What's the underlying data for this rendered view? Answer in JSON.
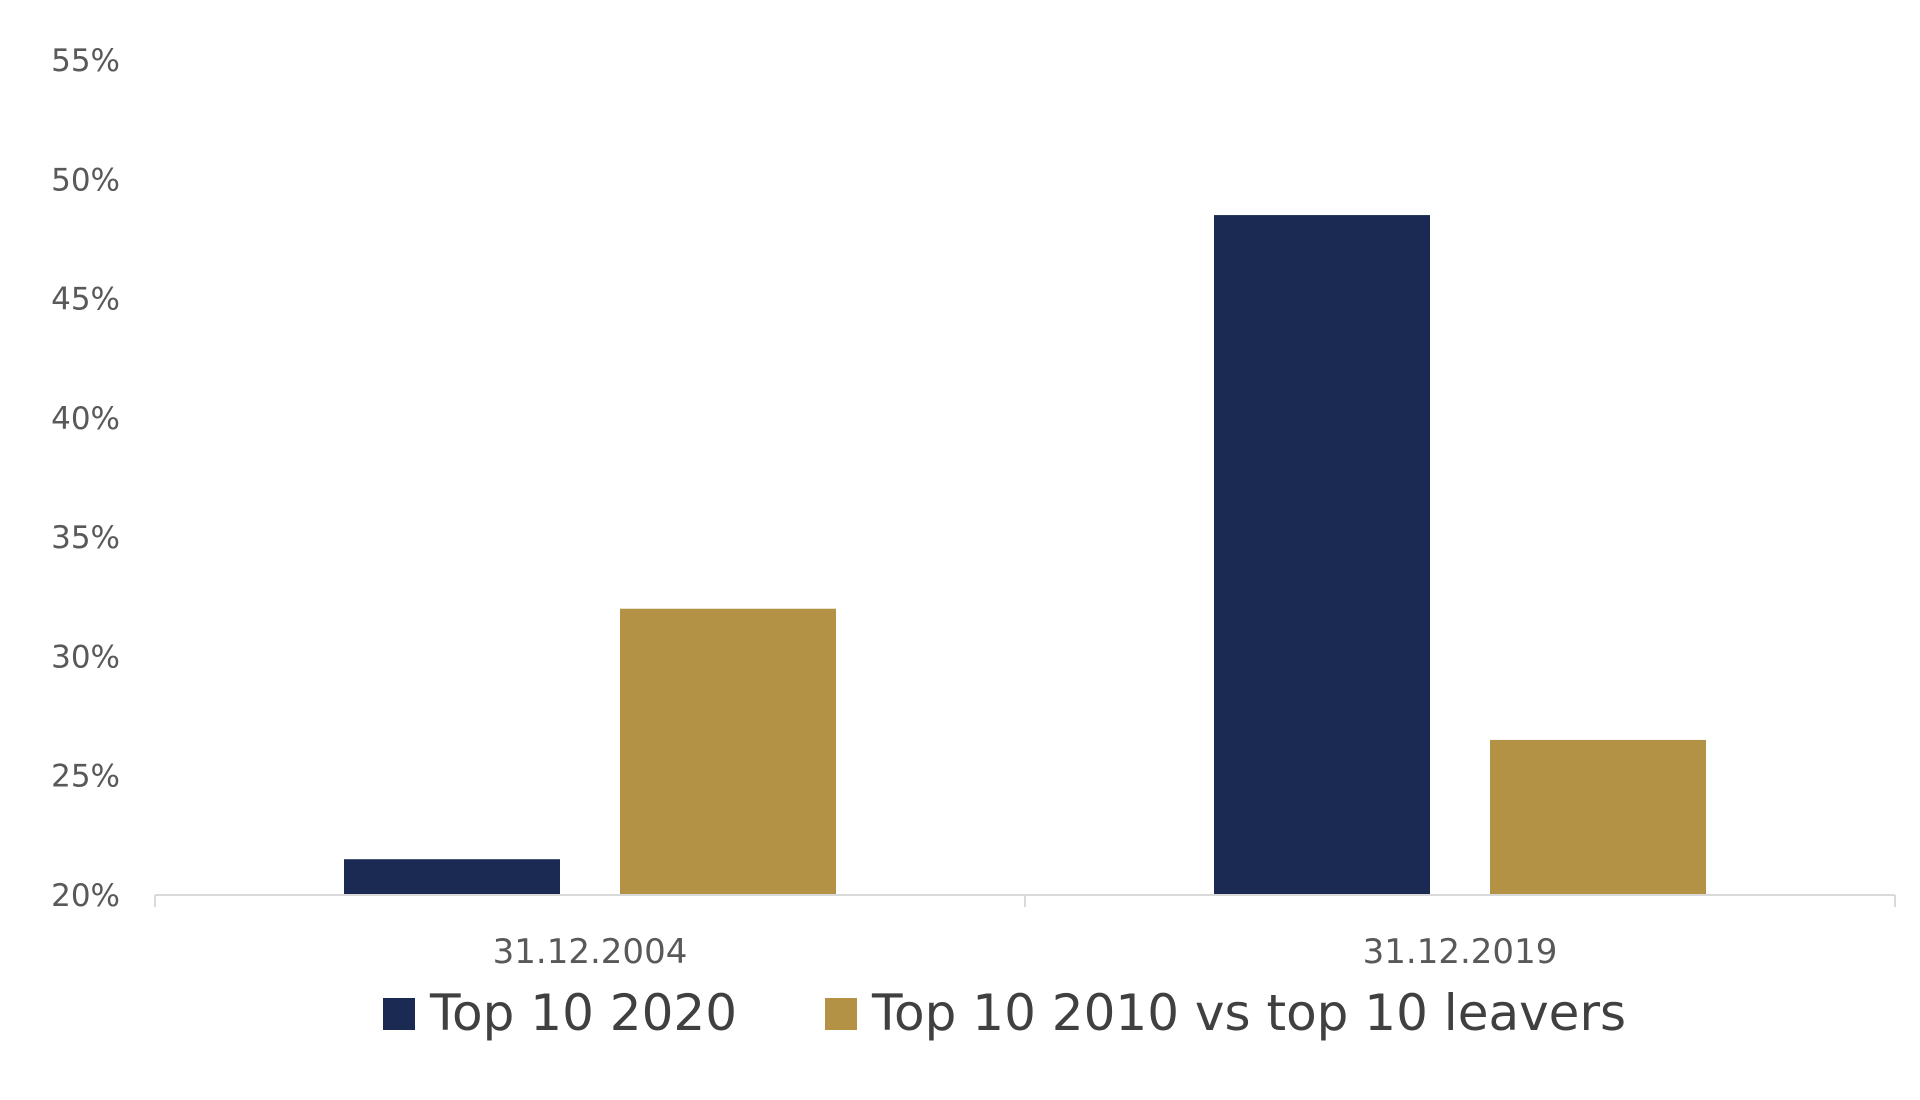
{
  "chart_data": {
    "type": "bar",
    "title": "",
    "xlabel": "",
    "ylabel": "",
    "categories": [
      "31.12.2004",
      "31.12.2019"
    ],
    "series": [
      {
        "name": "Top 10 2020",
        "values": [
          21.5,
          48.5
        ],
        "color": "#1a2a52"
      },
      {
        "name": "Top 10 2010 vs top 10 leavers",
        "values": [
          32.0,
          26.5
        ],
        "color": "#b39245"
      }
    ],
    "ylim": [
      20,
      55
    ],
    "yticks": [
      20,
      25,
      30,
      35,
      40,
      45,
      50,
      55
    ],
    "ytick_labels": [
      "20%",
      "25%",
      "30%",
      "35%",
      "40%",
      "45%",
      "50%",
      "55%"
    ],
    "grid": false,
    "legend_position": "bottom",
    "axis_color": "#d9d9d9"
  }
}
